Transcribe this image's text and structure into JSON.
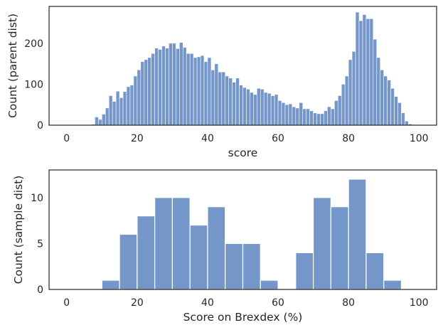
{
  "chart_data": [
    {
      "type": "histogram",
      "xlabel": "score",
      "ylabel": "Count (parent dist)",
      "xlim": [
        -5,
        105
      ],
      "ylim": [
        0,
        290
      ],
      "xticks": [
        0,
        20,
        40,
        60,
        80,
        100
      ],
      "yticks": [
        0,
        100,
        200
      ],
      "grid": false,
      "bar_color": "#7596c8",
      "bin_start": 0,
      "bin_width": 1,
      "values": [
        0,
        0,
        0,
        0,
        0,
        0,
        0,
        2,
        20,
        14,
        27,
        42,
        72,
        58,
        83,
        67,
        82,
        94,
        98,
        120,
        135,
        155,
        160,
        165,
        175,
        188,
        185,
        193,
        188,
        200,
        200,
        187,
        202,
        190,
        175,
        175,
        165,
        167,
        170,
        155,
        165,
        135,
        150,
        130,
        130,
        120,
        115,
        105,
        115,
        98,
        92,
        88,
        80,
        75,
        90,
        88,
        80,
        78,
        72,
        75,
        60,
        55,
        50,
        52,
        45,
        42,
        55,
        40,
        40,
        35,
        30,
        28,
        28,
        35,
        45,
        40,
        60,
        72,
        100,
        120,
        160,
        180,
        276,
        255,
        270,
        260,
        260,
        210,
        165,
        135,
        120,
        110,
        90,
        70,
        55,
        30,
        10,
        3,
        0,
        0
      ],
      "series": []
    },
    {
      "type": "histogram",
      "xlabel": "Score on Brexdex (%)",
      "ylabel": "Count (sample dist)",
      "xlim": [
        -5,
        105
      ],
      "ylim": [
        0,
        13
      ],
      "xticks": [
        0,
        20,
        40,
        60,
        80,
        100
      ],
      "yticks": [
        0,
        5,
        10
      ],
      "grid": false,
      "bar_color": "#7596c8",
      "bin_start": 0,
      "bin_width": 5,
      "values": [
        0,
        0,
        1,
        6,
        8,
        10,
        10,
        7,
        9,
        5,
        5,
        1,
        0,
        4,
        10,
        9,
        12,
        4,
        1,
        0
      ],
      "series": []
    }
  ]
}
